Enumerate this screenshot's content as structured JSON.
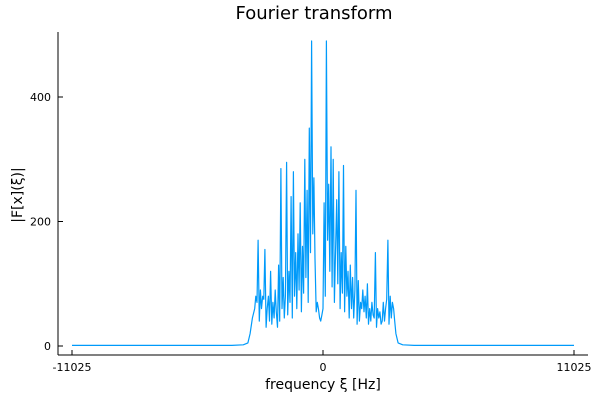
{
  "chart_data": {
    "type": "line",
    "title": "Fourier transform",
    "xlabel": "frequency ξ [Hz]",
    "ylabel": "|F[x](ξ)|",
    "xlim": [
      -11025,
      11025
    ],
    "ylim": [
      -10,
      500
    ],
    "xticks": [
      -11025,
      0,
      11025
    ],
    "yticks": [
      0,
      200,
      400
    ],
    "grid": false,
    "legend": "none",
    "series": [
      {
        "color": "#009AFA",
        "x": [
          -11025,
          -4000,
          -3500,
          -3300,
          -3200,
          -3100,
          -3000,
          -2950,
          -2900,
          -2850,
          -2800,
          -2750,
          -2700,
          -2650,
          -2600,
          -2550,
          -2500,
          -2450,
          -2400,
          -2350,
          -2300,
          -2250,
          -2200,
          -2150,
          -2100,
          -2050,
          -2000,
          -1950,
          -1900,
          -1850,
          -1800,
          -1750,
          -1700,
          -1650,
          -1600,
          -1550,
          -1500,
          -1450,
          -1400,
          -1350,
          -1300,
          -1250,
          -1200,
          -1150,
          -1100,
          -1050,
          -1000,
          -950,
          -900,
          -850,
          -800,
          -750,
          -700,
          -650,
          -600,
          -550,
          -500,
          -450,
          -400,
          -350,
          -300,
          -250,
          -200,
          -150,
          -100,
          -50,
          0,
          50,
          100,
          150,
          200,
          250,
          300,
          350,
          400,
          450,
          500,
          550,
          600,
          650,
          700,
          750,
          800,
          850,
          900,
          950,
          1000,
          1050,
          1100,
          1150,
          1200,
          1250,
          1300,
          1350,
          1400,
          1450,
          1500,
          1550,
          1600,
          1650,
          1700,
          1750,
          1800,
          1850,
          1900,
          1950,
          2000,
          2050,
          2100,
          2150,
          2200,
          2250,
          2300,
          2350,
          2400,
          2450,
          2500,
          2550,
          2600,
          2650,
          2700,
          2750,
          2800,
          2850,
          2900,
          2950,
          3000,
          3050,
          3100,
          3150,
          3200,
          3300,
          3500,
          4000,
          11025
        ],
        "y": [
          1,
          1,
          2,
          5,
          20,
          45,
          60,
          80,
          70,
          170,
          40,
          90,
          60,
          80,
          75,
          155,
          30,
          60,
          80,
          40,
          120,
          35,
          70,
          45,
          90,
          55,
          30,
          130,
          40,
          285,
          60,
          110,
          45,
          80,
          295,
          50,
          120,
          70,
          240,
          45,
          280,
          80,
          150,
          60,
          180,
          90,
          230,
          55,
          160,
          85,
          300,
          110,
          250,
          70,
          350,
          150,
          490,
          180,
          270,
          140,
          55,
          70,
          60,
          45,
          40,
          50,
          60,
          230,
          80,
          490,
          170,
          260,
          120,
          320,
          95,
          300,
          70,
          150,
          235,
          100,
          280,
          60,
          150,
          85,
          290,
          55,
          160,
          80,
          120,
          45,
          130,
          60,
          110,
          45,
          90,
          250,
          35,
          105,
          40,
          70,
          60,
          90,
          55,
          80,
          45,
          100,
          35,
          60,
          40,
          70,
          50,
          45,
          150,
          30,
          60,
          45,
          55,
          35,
          40,
          70,
          40,
          60,
          75,
          170,
          35,
          80,
          45,
          70,
          60,
          40,
          20,
          5,
          2,
          1,
          1
        ]
      }
    ]
  }
}
